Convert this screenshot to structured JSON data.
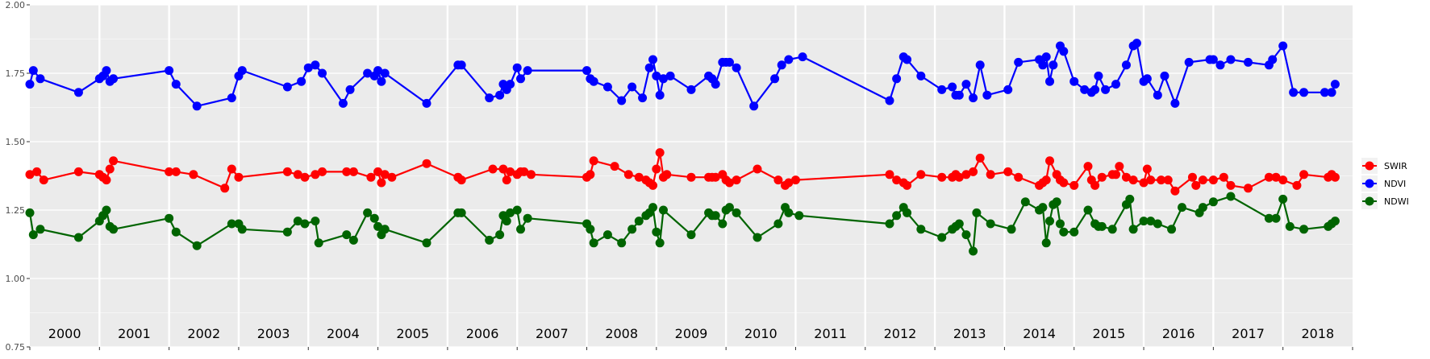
{
  "chart_data": {
    "type": "line",
    "title": "",
    "xlabel": "",
    "ylabel": "",
    "x_range": [
      2000,
      2019
    ],
    "ylim": [
      0.75,
      2.0
    ],
    "y_ticks": [
      "0.75",
      "1.00",
      "1.25",
      "1.50",
      "1.75",
      "2.00"
    ],
    "y_tick_values": [
      0.75,
      1.0,
      1.25,
      1.5,
      1.75,
      2.0
    ],
    "year_labels": [
      "2000",
      "2001",
      "2002",
      "2003",
      "2004",
      "2005",
      "2006",
      "2007",
      "2008",
      "2009",
      "2010",
      "2011",
      "2012",
      "2013",
      "2014",
      "2015",
      "2016",
      "2017",
      "2018"
    ],
    "grid": true,
    "legend_position": "right",
    "background_color": "#EBEBEB",
    "gridline_color": "#FFFFFF",
    "series": [
      {
        "name": "SWIR",
        "color": "#FF0000",
        "x": [
          2000.0,
          2000.1,
          2000.2,
          2000.7,
          2001.0,
          2001.05,
          2001.1,
          2001.15,
          2001.2,
          2002.0,
          2002.1,
          2002.35,
          2002.8,
          2002.9,
          2003.0,
          2003.7,
          2003.85,
          2003.95,
          2004.1,
          2004.2,
          2004.55,
          2004.65,
          2004.9,
          2005.0,
          2005.05,
          2005.1,
          2005.2,
          2005.7,
          2006.15,
          2006.2,
          2006.65,
          2006.8,
          2006.85,
          2006.9,
          2007.0,
          2007.05,
          2007.1,
          2007.2,
          2008.0,
          2008.05,
          2008.1,
          2008.4,
          2008.6,
          2008.75,
          2008.85,
          2008.9,
          2008.95,
          2009.0,
          2009.05,
          2009.1,
          2009.15,
          2009.5,
          2009.75,
          2009.8,
          2009.85,
          2009.95,
          2010.0,
          2010.05,
          2010.15,
          2010.45,
          2010.75,
          2010.85,
          2010.9,
          2011.0,
          2012.35,
          2012.45,
          2012.55,
          2012.6,
          2012.8,
          2013.1,
          2013.25,
          2013.3,
          2013.35,
          2013.45,
          2013.55,
          2013.65,
          2013.8,
          2014.05,
          2014.2,
          2014.5,
          2014.55,
          2014.6,
          2014.65,
          2014.75,
          2014.8,
          2014.85,
          2015.0,
          2015.2,
          2015.25,
          2015.3,
          2015.4,
          2015.55,
          2015.6,
          2015.65,
          2015.75,
          2015.85,
          2016.0,
          2016.05,
          2016.1,
          2016.25,
          2016.35,
          2016.45,
          2016.7,
          2016.75,
          2016.85,
          2017.0,
          2017.15,
          2017.25,
          2017.5,
          2017.8,
          2017.9,
          2018.0,
          2018.2,
          2018.3,
          2018.65,
          2018.7,
          2018.75
        ],
        "values": [
          1.38,
          1.39,
          1.36,
          1.39,
          1.38,
          1.37,
          1.36,
          1.4,
          1.43,
          1.39,
          1.39,
          1.38,
          1.33,
          1.4,
          1.37,
          1.39,
          1.38,
          1.37,
          1.38,
          1.39,
          1.39,
          1.39,
          1.37,
          1.39,
          1.35,
          1.38,
          1.37,
          1.42,
          1.37,
          1.36,
          1.4,
          1.4,
          1.36,
          1.39,
          1.38,
          1.39,
          1.39,
          1.38,
          1.37,
          1.38,
          1.43,
          1.41,
          1.38,
          1.37,
          1.36,
          1.35,
          1.34,
          1.4,
          1.46,
          1.37,
          1.38,
          1.37,
          1.37,
          1.37,
          1.37,
          1.38,
          1.36,
          1.35,
          1.36,
          1.4,
          1.36,
          1.34,
          1.35,
          1.36,
          1.38,
          1.36,
          1.35,
          1.34,
          1.38,
          1.37,
          1.37,
          1.38,
          1.37,
          1.38,
          1.39,
          1.44,
          1.38,
          1.39,
          1.37,
          1.34,
          1.35,
          1.36,
          1.43,
          1.38,
          1.36,
          1.35,
          1.34,
          1.41,
          1.36,
          1.34,
          1.37,
          1.38,
          1.38,
          1.41,
          1.37,
          1.36,
          1.35,
          1.4,
          1.36,
          1.36,
          1.36,
          1.32,
          1.37,
          1.34,
          1.36,
          1.36,
          1.37,
          1.34,
          1.33,
          1.37,
          1.37,
          1.36,
          1.34,
          1.38,
          1.37,
          1.38,
          1.37
        ]
      },
      {
        "name": "NDVI",
        "color": "#0000FF",
        "x": [
          2000.0,
          2000.05,
          2000.15,
          2000.7,
          2001.0,
          2001.05,
          2001.1,
          2001.15,
          2001.2,
          2002.0,
          2002.1,
          2002.4,
          2002.9,
          2003.0,
          2003.05,
          2003.7,
          2003.9,
          2004.0,
          2004.1,
          2004.2,
          2004.5,
          2004.6,
          2004.85,
          2004.95,
          2005.0,
          2005.05,
          2005.1,
          2005.7,
          2006.15,
          2006.2,
          2006.6,
          2006.75,
          2006.8,
          2006.85,
          2006.9,
          2007.0,
          2007.05,
          2007.15,
          2008.0,
          2008.05,
          2008.1,
          2008.3,
          2008.5,
          2008.65,
          2008.8,
          2008.9,
          2008.95,
          2009.0,
          2009.05,
          2009.1,
          2009.2,
          2009.5,
          2009.75,
          2009.8,
          2009.85,
          2009.95,
          2010.0,
          2010.05,
          2010.15,
          2010.4,
          2010.7,
          2010.8,
          2010.9,
          2011.1,
          2012.35,
          2012.45,
          2012.55,
          2012.6,
          2012.8,
          2013.1,
          2013.25,
          2013.3,
          2013.35,
          2013.45,
          2013.55,
          2013.65,
          2013.75,
          2014.05,
          2014.2,
          2014.5,
          2014.55,
          2014.6,
          2014.65,
          2014.7,
          2014.8,
          2014.85,
          2015.0,
          2015.15,
          2015.25,
          2015.3,
          2015.35,
          2015.45,
          2015.6,
          2015.75,
          2015.85,
          2015.9,
          2016.0,
          2016.05,
          2016.2,
          2016.3,
          2016.45,
          2016.65,
          2016.95,
          2017.0,
          2017.1,
          2017.25,
          2017.5,
          2017.8,
          2017.85,
          2018.0,
          2018.15,
          2018.3,
          2018.6,
          2018.7,
          2018.75
        ],
        "values": [
          1.71,
          1.76,
          1.73,
          1.68,
          1.73,
          1.74,
          1.76,
          1.72,
          1.73,
          1.76,
          1.71,
          1.63,
          1.66,
          1.74,
          1.76,
          1.7,
          1.72,
          1.77,
          1.78,
          1.75,
          1.64,
          1.69,
          1.75,
          1.74,
          1.76,
          1.72,
          1.75,
          1.64,
          1.78,
          1.78,
          1.66,
          1.67,
          1.71,
          1.69,
          1.71,
          1.77,
          1.73,
          1.76,
          1.76,
          1.73,
          1.72,
          1.7,
          1.65,
          1.7,
          1.66,
          1.77,
          1.8,
          1.74,
          1.67,
          1.73,
          1.74,
          1.69,
          1.74,
          1.73,
          1.71,
          1.79,
          1.79,
          1.79,
          1.77,
          1.63,
          1.73,
          1.78,
          1.8,
          1.81,
          1.65,
          1.73,
          1.81,
          1.8,
          1.74,
          1.69,
          1.7,
          1.67,
          1.67,
          1.71,
          1.66,
          1.78,
          1.67,
          1.69,
          1.79,
          1.8,
          1.78,
          1.81,
          1.72,
          1.78,
          1.85,
          1.83,
          1.72,
          1.69,
          1.68,
          1.69,
          1.74,
          1.69,
          1.71,
          1.78,
          1.85,
          1.86,
          1.72,
          1.73,
          1.67,
          1.74,
          1.64,
          1.79,
          1.8,
          1.8,
          1.78,
          1.8,
          1.79,
          1.78,
          1.8,
          1.85,
          1.68,
          1.68,
          1.68,
          1.68,
          1.71
        ]
      },
      {
        "name": "NDWI",
        "color": "#006400",
        "x": [
          2000.0,
          2000.05,
          2000.15,
          2000.7,
          2001.0,
          2001.05,
          2001.1,
          2001.15,
          2001.2,
          2002.0,
          2002.1,
          2002.4,
          2002.9,
          2003.0,
          2003.05,
          2003.7,
          2003.85,
          2003.95,
          2004.1,
          2004.15,
          2004.55,
          2004.65,
          2004.85,
          2004.95,
          2005.0,
          2005.05,
          2005.1,
          2005.7,
          2006.15,
          2006.2,
          2006.6,
          2006.75,
          2006.8,
          2006.85,
          2006.9,
          2007.0,
          2007.05,
          2007.15,
          2008.0,
          2008.05,
          2008.1,
          2008.3,
          2008.5,
          2008.65,
          2008.75,
          2008.85,
          2008.9,
          2008.95,
          2009.0,
          2009.05,
          2009.1,
          2009.5,
          2009.75,
          2009.8,
          2009.85,
          2009.95,
          2010.0,
          2010.05,
          2010.15,
          2010.45,
          2010.75,
          2010.85,
          2010.9,
          2011.05,
          2012.35,
          2012.45,
          2012.55,
          2012.6,
          2012.8,
          2013.1,
          2013.25,
          2013.3,
          2013.35,
          2013.45,
          2013.55,
          2013.6,
          2013.8,
          2014.1,
          2014.3,
          2014.5,
          2014.55,
          2014.6,
          2014.65,
          2014.7,
          2014.75,
          2014.8,
          2014.85,
          2015.0,
          2015.2,
          2015.3,
          2015.35,
          2015.4,
          2015.55,
          2015.75,
          2015.8,
          2015.85,
          2016.0,
          2016.1,
          2016.2,
          2016.4,
          2016.55,
          2016.8,
          2016.85,
          2017.0,
          2017.25,
          2017.8,
          2017.9,
          2018.0,
          2018.1,
          2018.3,
          2018.65,
          2018.7,
          2018.75
        ],
        "values": [
          1.24,
          1.16,
          1.18,
          1.15,
          1.21,
          1.23,
          1.25,
          1.19,
          1.18,
          1.22,
          1.17,
          1.12,
          1.2,
          1.2,
          1.18,
          1.17,
          1.21,
          1.2,
          1.21,
          1.13,
          1.16,
          1.14,
          1.24,
          1.22,
          1.19,
          1.16,
          1.18,
          1.13,
          1.24,
          1.24,
          1.14,
          1.16,
          1.23,
          1.21,
          1.24,
          1.25,
          1.18,
          1.22,
          1.2,
          1.18,
          1.13,
          1.16,
          1.13,
          1.18,
          1.21,
          1.23,
          1.24,
          1.26,
          1.17,
          1.13,
          1.25,
          1.16,
          1.24,
          1.23,
          1.23,
          1.2,
          1.25,
          1.26,
          1.24,
          1.15,
          1.2,
          1.26,
          1.24,
          1.23,
          1.2,
          1.23,
          1.26,
          1.24,
          1.18,
          1.15,
          1.18,
          1.19,
          1.2,
          1.16,
          1.1,
          1.24,
          1.2,
          1.18,
          1.28,
          1.25,
          1.26,
          1.13,
          1.21,
          1.27,
          1.28,
          1.2,
          1.17,
          1.17,
          1.25,
          1.2,
          1.19,
          1.19,
          1.18,
          1.27,
          1.29,
          1.18,
          1.21,
          1.21,
          1.2,
          1.18,
          1.26,
          1.24,
          1.26,
          1.28,
          1.3,
          1.22,
          1.22,
          1.29,
          1.19,
          1.18,
          1.19,
          1.2,
          1.21
        ]
      }
    ]
  }
}
